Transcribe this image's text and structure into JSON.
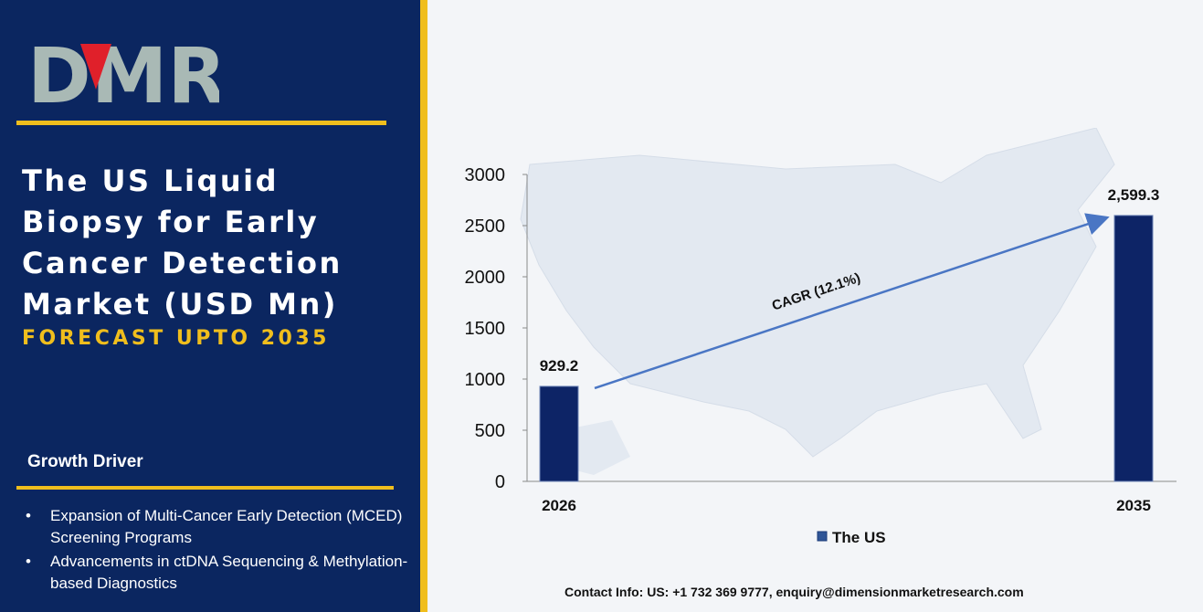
{
  "brand": {
    "logo_text": "DMR"
  },
  "left_panel": {
    "title_lines": [
      "The US Liquid",
      "Biopsy for Early",
      "Cancer Detection",
      "Market (USD Mn)"
    ],
    "subtitle": "FORECAST UPTO 2035",
    "growth_driver_heading": "Growth Driver",
    "drivers": [
      "Expansion of Multi-Cancer Early Detection (MCED) Screening Programs",
      "Advancements in ctDNA Sequencing & Methylation-based Diagnostics"
    ],
    "bullet_symbol": "•"
  },
  "chart_data": {
    "type": "bar",
    "categories": [
      "2026",
      "2035"
    ],
    "series": [
      {
        "name": "The US",
        "values": [
          929.2,
          2599.3
        ]
      }
    ],
    "data_labels": [
      "929.2",
      "2,599.3"
    ],
    "yticks": [
      "0",
      "500",
      "1000",
      "1500",
      "2000",
      "2500",
      "3000"
    ],
    "ylim": [
      0,
      3000
    ],
    "annotation": "CAGR (12.1%)",
    "legend_position": "bottom",
    "bar_color": "#0d2466",
    "arrow_color": "#4a76c4"
  },
  "footer": {
    "contact": "Contact Info: US: +1 732 369 9777, enquiry@dimensionmarketresearch.com"
  },
  "colors": {
    "panel_bg": "#0b2660",
    "accent_gold": "#f0be1d",
    "logo_red": "#e0202a",
    "logo_gray": "#a9b9b5"
  }
}
